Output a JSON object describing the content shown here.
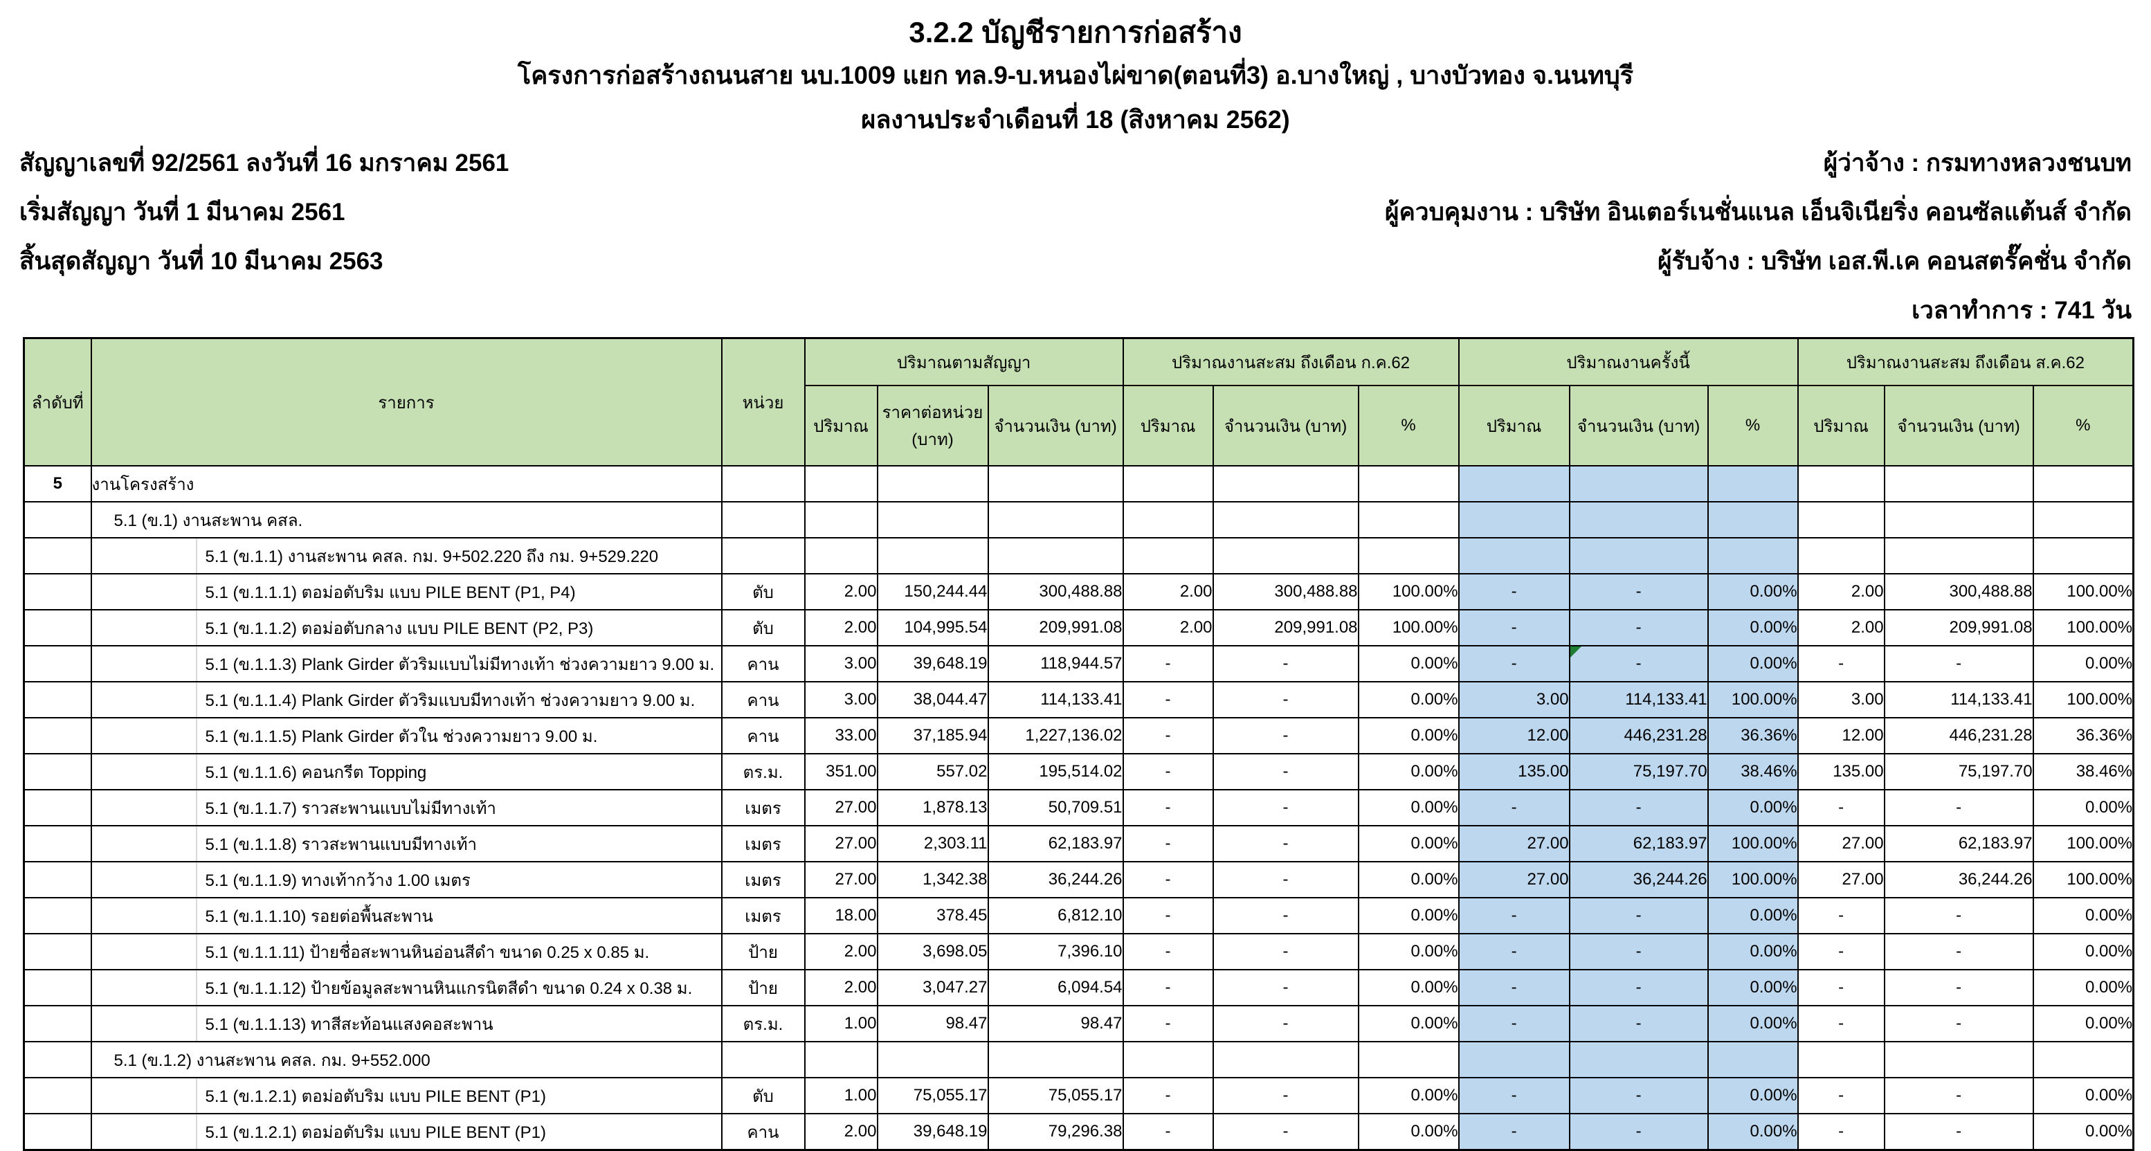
{
  "header": {
    "title": "3.2.2 บัญชีรายการก่อสร้าง",
    "project": "โครงการก่อสร้างถนนสาย นบ.1009 แยก ทล.9-บ.หนองไผ่ขาด(ตอนที่3)  อ.บางใหญ่ , บางบัวทอง จ.นนทบุรี",
    "period": "ผลงานประจำเดือนที่ 18 (สิงหาคม 2562)"
  },
  "contract_info": {
    "left": [
      "สัญญาเลขที่ 92/2561 ลงวันที่ 16 มกราคม 2561",
      "เริ่มสัญญา  วันที่ 1 มีนาคม 2561",
      "สิ้นสุดสัญญา  วันที่ 10 มีนาคม 2563"
    ],
    "right": [
      "ผู้ว่าจ้าง : กรมทางหลวงชนบท",
      "ผู้ควบคุมงาน : บริษัท อินเตอร์เนชั่นแนล เอ็นจิเนียริ่ง คอนซัลแต้นส์ จำกัด",
      "ผู้รับจ้าง : บริษัท เอส.พี.เค คอนสตรั๊คชั่น จำกัด",
      "เวลาทำการ : 741 วัน"
    ]
  },
  "colors": {
    "header_green": "#c6e0b4",
    "current_period_blue": "#bdd7ee",
    "comment_marker_green": "#1e7e34"
  },
  "table": {
    "header": {
      "no": "ลำดับที่",
      "item": "รายการ",
      "unit": "หน่วย",
      "groups": [
        {
          "label": "ปริมาณตามสัญญา",
          "cols": [
            "ปริมาณ",
            "ราคาต่อหน่วย (บาท)",
            "จำนวนเงิน (บาท)"
          ]
        },
        {
          "label": "ปริมาณงานสะสม ถึงเดือน ก.ค.62",
          "cols": [
            "ปริมาณ",
            "จำนวนเงิน (บาท)",
            "%"
          ]
        },
        {
          "label": "ปริมาณงานครั้งนี้",
          "cols": [
            "ปริมาณ",
            "จำนวนเงิน (บาท)",
            "%"
          ]
        },
        {
          "label": "ปริมาณงานสะสม ถึงเดือน ส.ค.62",
          "cols": [
            "ปริมาณ",
            "จำนวนเงิน (บาท)",
            "%"
          ]
        }
      ]
    },
    "rows": [
      {
        "no": "5",
        "item": "งานโครงสร้าง",
        "indent": 0,
        "unit": "",
        "c_qty": "",
        "c_price": "",
        "c_amt": "",
        "p_qty": "",
        "p_amt": "",
        "p_pct": "",
        "t_qty": "",
        "t_amt": "",
        "t_pct": "",
        "a_qty": "",
        "a_amt": "",
        "a_pct": "",
        "note": false
      },
      {
        "no": "",
        "item": "5.1 (ข.1) งานสะพาน คสล.",
        "indent": 1,
        "unit": "",
        "c_qty": "",
        "c_price": "",
        "c_amt": "",
        "p_qty": "",
        "p_amt": "",
        "p_pct": "",
        "t_qty": "",
        "t_amt": "",
        "t_pct": "",
        "a_qty": "",
        "a_amt": "",
        "a_pct": "",
        "note": false
      },
      {
        "no": "",
        "item": "5.1 (ข.1.1) งานสะพาน คสล. กม. 9+502.220 ถึง กม. 9+529.220",
        "indent": 2,
        "unit": "",
        "c_qty": "",
        "c_price": "",
        "c_amt": "",
        "p_qty": "",
        "p_amt": "",
        "p_pct": "",
        "t_qty": "",
        "t_amt": "",
        "t_pct": "",
        "a_qty": "",
        "a_amt": "",
        "a_pct": "",
        "note": false
      },
      {
        "no": "",
        "item": "5.1 (ข.1.1.1)  ตอม่อตับริม แบบ PILE BENT (P1, P4)",
        "indent": 2,
        "unit": "ตับ",
        "c_qty": "2.00",
        "c_price": "150,244.44",
        "c_amt": "300,488.88",
        "p_qty": "2.00",
        "p_amt": "300,488.88",
        "p_pct": "100.00%",
        "t_qty": "-",
        "t_amt": "-",
        "t_pct": "0.00%",
        "a_qty": "2.00",
        "a_amt": "300,488.88",
        "a_pct": "100.00%",
        "note": false
      },
      {
        "no": "",
        "item": "5.1 (ข.1.1.2)  ตอม่อตับกลาง แบบ PILE BENT (P2, P3)",
        "indent": 2,
        "unit": "ตับ",
        "c_qty": "2.00",
        "c_price": "104,995.54",
        "c_amt": "209,991.08",
        "p_qty": "2.00",
        "p_amt": "209,991.08",
        "p_pct": "100.00%",
        "t_qty": "-",
        "t_amt": "-",
        "t_pct": "0.00%",
        "a_qty": "2.00",
        "a_amt": "209,991.08",
        "a_pct": "100.00%",
        "note": false
      },
      {
        "no": "",
        "item": "5.1 (ข.1.1.3)  Plank Girder ตัวริมแบบไม่มีทางเท้า ช่วงความยาว 9.00 ม.",
        "indent": 2,
        "unit": "คาน",
        "c_qty": "3.00",
        "c_price": "39,648.19",
        "c_amt": "118,944.57",
        "p_qty": "-",
        "p_amt": "-",
        "p_pct": "0.00%",
        "t_qty": "-",
        "t_amt": "-",
        "t_pct": "0.00%",
        "a_qty": "-",
        "a_amt": "-",
        "a_pct": "0.00%",
        "note": true
      },
      {
        "no": "",
        "item": "5.1 (ข.1.1.4)  Plank Girder ตัวริมแบบมีทางเท้า ช่วงความยาว 9.00 ม.",
        "indent": 2,
        "unit": "คาน",
        "c_qty": "3.00",
        "c_price": "38,044.47",
        "c_amt": "114,133.41",
        "p_qty": "-",
        "p_amt": "-",
        "p_pct": "0.00%",
        "t_qty": "3.00",
        "t_amt": "114,133.41",
        "t_pct": "100.00%",
        "a_qty": "3.00",
        "a_amt": "114,133.41",
        "a_pct": "100.00%",
        "note": false
      },
      {
        "no": "",
        "item": "5.1 (ข.1.1.5)  Plank Girder ตัวใน ช่วงความยาว 9.00 ม.",
        "indent": 2,
        "unit": "คาน",
        "c_qty": "33.00",
        "c_price": "37,185.94",
        "c_amt": "1,227,136.02",
        "p_qty": "-",
        "p_amt": "-",
        "p_pct": "0.00%",
        "t_qty": "12.00",
        "t_amt": "446,231.28",
        "t_pct": "36.36%",
        "a_qty": "12.00",
        "a_amt": "446,231.28",
        "a_pct": "36.36%",
        "note": false
      },
      {
        "no": "",
        "item": "5.1 (ข.1.1.6)  คอนกรีต Topping",
        "indent": 2,
        "unit": "ตร.ม.",
        "c_qty": "351.00",
        "c_price": "557.02",
        "c_amt": "195,514.02",
        "p_qty": "-",
        "p_amt": "-",
        "p_pct": "0.00%",
        "t_qty": "135.00",
        "t_amt": "75,197.70",
        "t_pct": "38.46%",
        "a_qty": "135.00",
        "a_amt": "75,197.70",
        "a_pct": "38.46%",
        "note": false
      },
      {
        "no": "",
        "item": "5.1 (ข.1.1.7)  ราวสะพานแบบไม่มีทางเท้า",
        "indent": 2,
        "unit": "เมตร",
        "c_qty": "27.00",
        "c_price": "1,878.13",
        "c_amt": "50,709.51",
        "p_qty": "-",
        "p_amt": "-",
        "p_pct": "0.00%",
        "t_qty": "-",
        "t_amt": "-",
        "t_pct": "0.00%",
        "a_qty": "-",
        "a_amt": "-",
        "a_pct": "0.00%",
        "note": false
      },
      {
        "no": "",
        "item": "5.1 (ข.1.1.8)  ราวสะพานแบบมีทางเท้า",
        "indent": 2,
        "unit": "เมตร",
        "c_qty": "27.00",
        "c_price": "2,303.11",
        "c_amt": "62,183.97",
        "p_qty": "-",
        "p_amt": "-",
        "p_pct": "0.00%",
        "t_qty": "27.00",
        "t_amt": "62,183.97",
        "t_pct": "100.00%",
        "a_qty": "27.00",
        "a_amt": "62,183.97",
        "a_pct": "100.00%",
        "note": false
      },
      {
        "no": "",
        "item": "5.1 (ข.1.1.9)  ทางเท้ากว้าง 1.00 เมตร",
        "indent": 2,
        "unit": "เมตร",
        "c_qty": "27.00",
        "c_price": "1,342.38",
        "c_amt": "36,244.26",
        "p_qty": "-",
        "p_amt": "-",
        "p_pct": "0.00%",
        "t_qty": "27.00",
        "t_amt": "36,244.26",
        "t_pct": "100.00%",
        "a_qty": "27.00",
        "a_amt": "36,244.26",
        "a_pct": "100.00%",
        "note": false
      },
      {
        "no": "",
        "item": "5.1 (ข.1.1.10)  รอยต่อพื้นสะพาน",
        "indent": 2,
        "unit": "เมตร",
        "c_qty": "18.00",
        "c_price": "378.45",
        "c_amt": "6,812.10",
        "p_qty": "-",
        "p_amt": "-",
        "p_pct": "0.00%",
        "t_qty": "-",
        "t_amt": "-",
        "t_pct": "0.00%",
        "a_qty": "-",
        "a_amt": "-",
        "a_pct": "0.00%",
        "note": false
      },
      {
        "no": "",
        "item": "5.1 (ข.1.1.11)  ป้ายชื่อสะพานหินอ่อนสีดำ ขนาด 0.25 x 0.85 ม.",
        "indent": 2,
        "unit": "ป้าย",
        "c_qty": "2.00",
        "c_price": "3,698.05",
        "c_amt": "7,396.10",
        "p_qty": "-",
        "p_amt": "-",
        "p_pct": "0.00%",
        "t_qty": "-",
        "t_amt": "-",
        "t_pct": "0.00%",
        "a_qty": "-",
        "a_amt": "-",
        "a_pct": "0.00%",
        "note": false
      },
      {
        "no": "",
        "item": "5.1 (ข.1.1.12)  ป้ายข้อมูลสะพานหินแกรนิตสีดำ ขนาด 0.24 x 0.38 ม.",
        "indent": 2,
        "unit": "ป้าย",
        "c_qty": "2.00",
        "c_price": "3,047.27",
        "c_amt": "6,094.54",
        "p_qty": "-",
        "p_amt": "-",
        "p_pct": "0.00%",
        "t_qty": "-",
        "t_amt": "-",
        "t_pct": "0.00%",
        "a_qty": "-",
        "a_amt": "-",
        "a_pct": "0.00%",
        "note": false
      },
      {
        "no": "",
        "item": "5.1 (ข.1.1.13)  ทาสีสะท้อนแสงคอสะพาน",
        "indent": 2,
        "unit": "ตร.ม.",
        "c_qty": "1.00",
        "c_price": "98.47",
        "c_amt": "98.47",
        "p_qty": "-",
        "p_amt": "-",
        "p_pct": "0.00%",
        "t_qty": "-",
        "t_amt": "-",
        "t_pct": "0.00%",
        "a_qty": "-",
        "a_amt": "-",
        "a_pct": "0.00%",
        "note": false
      },
      {
        "no": "",
        "item": "5.1 (ข.1.2) งานสะพาน คสล. กม. 9+552.000",
        "indent": 1,
        "unit": "",
        "c_qty": "",
        "c_price": "",
        "c_amt": "",
        "p_qty": "",
        "p_amt": "",
        "p_pct": "",
        "t_qty": "",
        "t_amt": "",
        "t_pct": "",
        "a_qty": "",
        "a_amt": "",
        "a_pct": "",
        "note": false
      },
      {
        "no": "",
        "item": "5.1 (ข.1.2.1)  ตอม่อตับริม แบบ PILE BENT (P1)",
        "indent": 2,
        "unit": "ตับ",
        "c_qty": "1.00",
        "c_price": "75,055.17",
        "c_amt": "75,055.17",
        "p_qty": "-",
        "p_amt": "-",
        "p_pct": "0.00%",
        "t_qty": "-",
        "t_amt": "-",
        "t_pct": "0.00%",
        "a_qty": "-",
        "a_amt": "-",
        "a_pct": "0.00%",
        "note": false
      },
      {
        "no": "",
        "item": "5.1 (ข.1.2.1)  ตอม่อตับริม แบบ PILE BENT (P1)",
        "indent": 2,
        "unit": "คาน",
        "c_qty": "2.00",
        "c_price": "39,648.19",
        "c_amt": "79,296.38",
        "p_qty": "-",
        "p_amt": "-",
        "p_pct": "0.00%",
        "t_qty": "-",
        "t_amt": "-",
        "t_pct": "0.00%",
        "a_qty": "-",
        "a_amt": "-",
        "a_pct": "0.00%",
        "note": false
      }
    ]
  }
}
